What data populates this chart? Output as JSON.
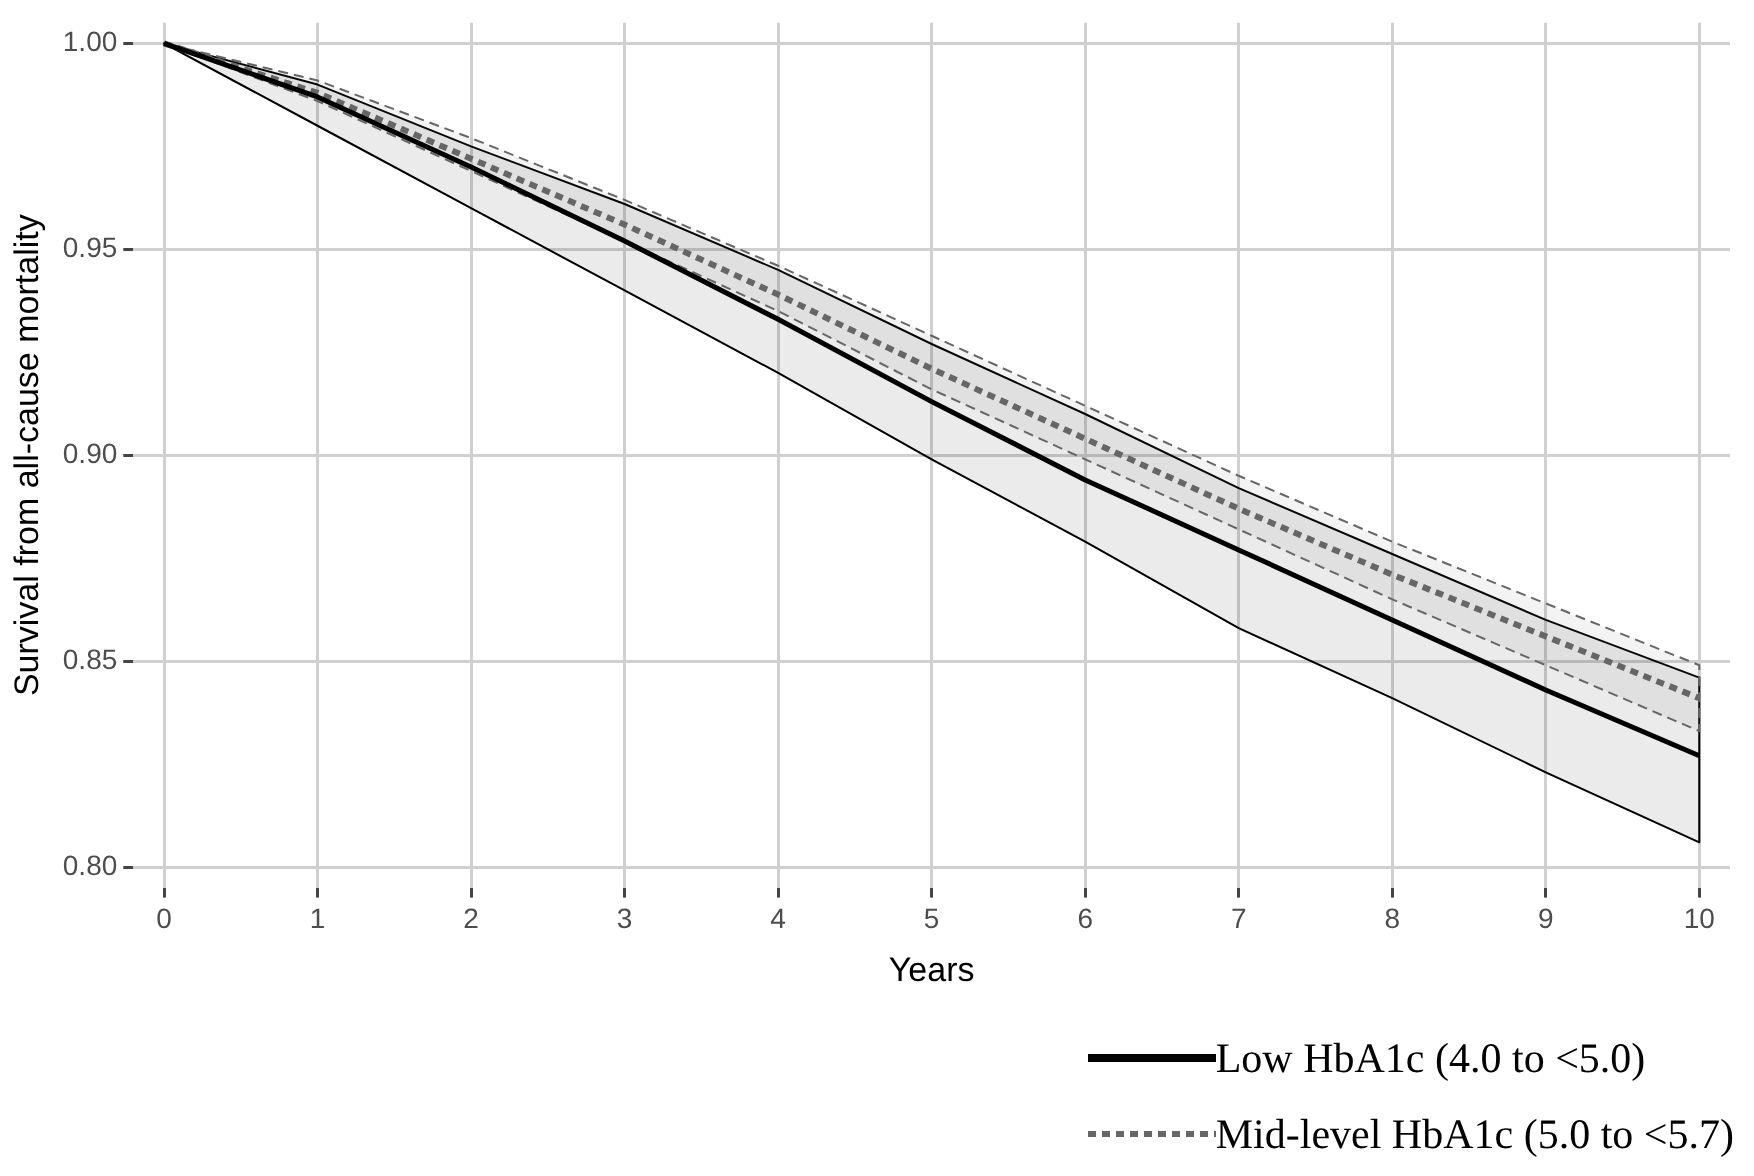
{
  "chart_data": {
    "type": "line",
    "xlabel": "Years",
    "ylabel": "Survival from all-cause mortality",
    "x": [
      0,
      1,
      2,
      3,
      4,
      5,
      6,
      7,
      8,
      9,
      10
    ],
    "series": [
      {
        "name": "Low HbA1c (4.0 to <5.0)",
        "color": "#000000",
        "line_style": "solid",
        "values": [
          1.0,
          0.987,
          0.97,
          0.952,
          0.933,
          0.913,
          0.894,
          0.877,
          0.86,
          0.843,
          0.827
        ],
        "lower": [
          1.0,
          0.98,
          0.96,
          0.94,
          0.92,
          0.899,
          0.879,
          0.858,
          0.841,
          0.823,
          0.806
        ],
        "upper": [
          1.0,
          0.99,
          0.975,
          0.961,
          0.945,
          0.927,
          0.91,
          0.892,
          0.876,
          0.86,
          0.846
        ]
      },
      {
        "name": "Mid-level HbA1c (5.0 to <5.7)",
        "color": "#666666",
        "line_style": "dotted",
        "values": [
          1.0,
          0.988,
          0.972,
          0.956,
          0.939,
          0.921,
          0.904,
          0.887,
          0.871,
          0.856,
          0.841
        ],
        "lower": [
          1.0,
          0.986,
          0.969,
          0.952,
          0.935,
          0.916,
          0.899,
          0.882,
          0.865,
          0.849,
          0.833
        ],
        "upper": [
          1.0,
          0.991,
          0.977,
          0.962,
          0.946,
          0.929,
          0.912,
          0.895,
          0.879,
          0.864,
          0.849
        ]
      }
    ],
    "xlim": [
      -0.2,
      10.2
    ],
    "xticks": [
      0,
      1,
      2,
      3,
      4,
      5,
      6,
      7,
      8,
      9,
      10
    ],
    "ylim": [
      0.795,
      1.005
    ],
    "yticks": [
      {
        "value": 0.8,
        "label": "0.80"
      },
      {
        "value": 0.85,
        "label": "0.85"
      },
      {
        "value": 0.9,
        "label": "0.90"
      },
      {
        "value": 0.95,
        "label": "0.95"
      },
      {
        "value": 1.0,
        "label": "1.00"
      }
    ],
    "grid": true,
    "legend": "bottom right",
    "marker": "none"
  }
}
